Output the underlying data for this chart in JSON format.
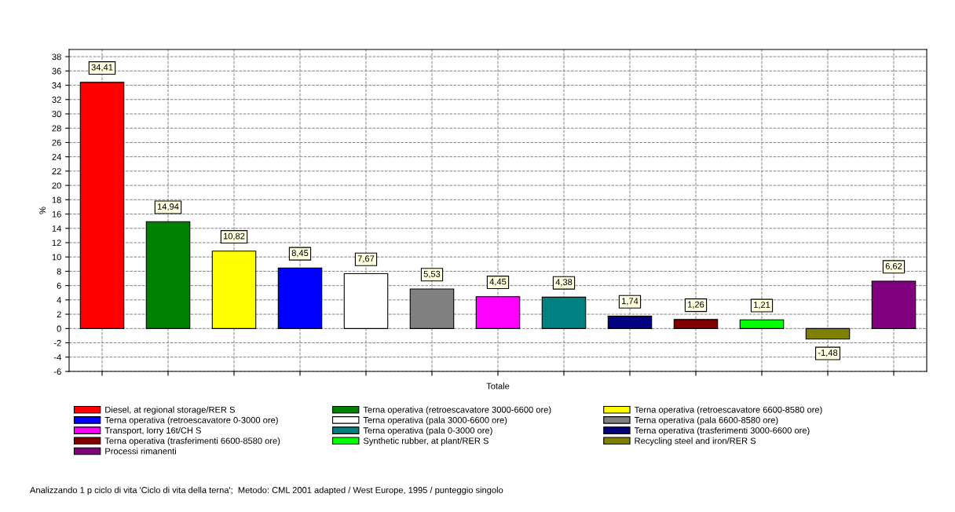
{
  "chart_data": {
    "type": "bar",
    "categories": [
      "Totale"
    ],
    "ylabel": "%",
    "ylim": [
      -6,
      39
    ],
    "yticks": [
      -6,
      -4,
      -2,
      0,
      2,
      4,
      6,
      8,
      10,
      12,
      14,
      16,
      18,
      20,
      22,
      24,
      26,
      28,
      30,
      32,
      34,
      36,
      38
    ],
    "grid": true,
    "legend": "bottom",
    "series": [
      {
        "name": "Diesel, at regional storage/RER S",
        "color": "#ff0000",
        "values": [
          34.41
        ],
        "value_labels": [
          "34,41"
        ]
      },
      {
        "name": "Terna operativa (retroescavatore 3000-6600 ore)",
        "color": "#008000",
        "values": [
          14.94
        ],
        "value_labels": [
          "14,94"
        ]
      },
      {
        "name": "Terna operativa (retroescavatore 6600-8580 ore)",
        "color": "#ffff00",
        "values": [
          10.82
        ],
        "value_labels": [
          "10,82"
        ]
      },
      {
        "name": "Terna operativa (retroescavatore 0-3000 ore)",
        "color": "#0000ff",
        "values": [
          8.45
        ],
        "value_labels": [
          "8,45"
        ]
      },
      {
        "name": "Terna operativa (pala 3000-6600 ore)",
        "color": "#ffffff",
        "values": [
          7.67
        ],
        "value_labels": [
          "7,67"
        ]
      },
      {
        "name": "Terna operativa (pala 6600-8580 ore)",
        "color": "#808080",
        "values": [
          5.53
        ],
        "value_labels": [
          "5,53"
        ]
      },
      {
        "name": "Transport, lorry 16t/CH S",
        "color": "#ff00ff",
        "values": [
          4.45
        ],
        "value_labels": [
          "4,45"
        ]
      },
      {
        "name": "Terna operativa (pala 0-3000 ore)",
        "color": "#008080",
        "values": [
          4.38
        ],
        "value_labels": [
          "4,38"
        ]
      },
      {
        "name": "Terna operativa (trasferimenti 3000-6600 ore)",
        "color": "#000080",
        "values": [
          1.74
        ],
        "value_labels": [
          "1,74"
        ]
      },
      {
        "name": "Terna operativa (trasferimenti 6600-8580 ore)",
        "color": "#800000",
        "values": [
          1.26
        ],
        "value_labels": [
          "1,26"
        ]
      },
      {
        "name": "Synthetic rubber, at plant/RER S",
        "color": "#00ff00",
        "values": [
          1.21
        ],
        "value_labels": [
          "1,21"
        ]
      },
      {
        "name": "Recycling steel and iron/RER S",
        "color": "#808000",
        "values": [
          -1.48
        ],
        "value_labels": [
          "-1,48"
        ]
      },
      {
        "name": "Processi rimanenti",
        "color": "#800080",
        "values": [
          6.62
        ],
        "value_labels": [
          "6,62"
        ]
      }
    ],
    "annotations": [
      "Analizzando 1 p ciclo di vita 'Ciclo di vita della terna';  Metodo: CML 2001 adapted / West Europe, 1995 / punteggio singolo"
    ]
  }
}
